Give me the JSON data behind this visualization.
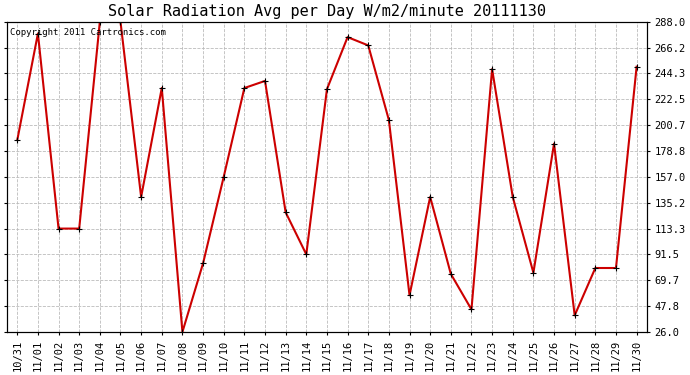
{
  "title": "Solar Radiation Avg per Day W/m2/minute 20111130",
  "copyright_text": "Copyright 2011 Cartronics.com",
  "x_labels": [
    "10/31",
    "11/01",
    "11/02",
    "11/03",
    "11/04",
    "11/05",
    "11/06",
    "11/07",
    "11/08",
    "11/09",
    "11/10",
    "11/11",
    "11/12",
    "11/13",
    "11/14",
    "11/15",
    "11/16",
    "11/17",
    "11/18",
    "11/19",
    "11/20",
    "11/21",
    "11/22",
    "11/23",
    "11/24",
    "11/25",
    "11/26",
    "11/27",
    "11/28",
    "11/29",
    "11/30"
  ],
  "y_values": [
    188.0,
    278.0,
    113.3,
    113.3,
    288.0,
    288.0,
    140.0,
    232.0,
    26.0,
    84.0,
    157.0,
    232.0,
    238.0,
    127.0,
    91.5,
    231.0,
    275.0,
    268.0,
    205.0,
    57.0,
    140.0,
    75.0,
    45.0,
    248.0,
    140.0,
    76.0,
    185.0,
    40.0,
    80.0,
    80.0,
    250.0
  ],
  "line_color": "#cc0000",
  "marker_color": "#000000",
  "background_color": "#ffffff",
  "grid_color": "#bbbbbb",
  "ylim_min": 26.0,
  "ylim_max": 288.0,
  "yticks": [
    26.0,
    47.8,
    69.7,
    91.5,
    113.3,
    135.2,
    157.0,
    178.8,
    200.7,
    222.5,
    244.3,
    266.2,
    288.0
  ],
  "title_fontsize": 11,
  "tick_fontsize": 7.5,
  "copyright_fontsize": 6.5
}
